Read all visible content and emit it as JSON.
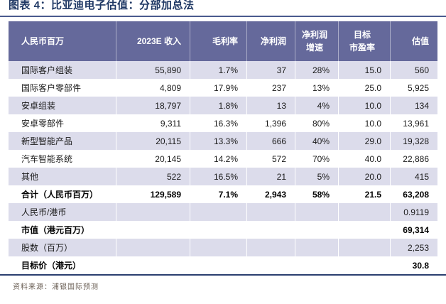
{
  "title": "图表 4：比亚迪电子估值：分部加总法",
  "source": "资料来源：浦银国际预测",
  "colors": {
    "header_bg": "#65699b",
    "stripe_bg": "#dcdceb",
    "title_navy": "#1f3864",
    "top_rule": "#4a5a8e",
    "bottom_rule": "#2a3f6f",
    "source_text": "#6a5f55"
  },
  "table": {
    "columns": [
      "人民币百万",
      "2023E 收入",
      "毛利率",
      "净利润",
      "净利润\n增速",
      "目标\n市盈率",
      "估值"
    ],
    "rows": [
      {
        "label": "国际客户组装",
        "values": [
          "55,890",
          "1.7%",
          "37",
          "28%",
          "15.0",
          "560"
        ],
        "bold": false
      },
      {
        "label": "国际客户零部件",
        "values": [
          "4,809",
          "17.9%",
          "237",
          "13%",
          "25.0",
          "5,925"
        ],
        "bold": false
      },
      {
        "label": "安卓组装",
        "values": [
          "18,797",
          "1.8%",
          "13",
          "4%",
          "10.0",
          "134"
        ],
        "bold": false
      },
      {
        "label": "安卓零部件",
        "values": [
          "9,311",
          "16.3%",
          "1,396",
          "80%",
          "10.0",
          "13,961"
        ],
        "bold": false
      },
      {
        "label": "新型智能产品",
        "values": [
          "20,115",
          "13.3%",
          "666",
          "40%",
          "29.0",
          "19,328"
        ],
        "bold": false
      },
      {
        "label": "汽车智能系统",
        "values": [
          "20,145",
          "14.2%",
          "572",
          "70%",
          "40.0",
          "22,886"
        ],
        "bold": false
      },
      {
        "label": "其他",
        "values": [
          "522",
          "16.5%",
          "21",
          "5%",
          "20.0",
          "415"
        ],
        "bold": false
      },
      {
        "label": "合计（人民币百万）",
        "values": [
          "129,589",
          "7.1%",
          "2,943",
          "58%",
          "21.5",
          "63,208"
        ],
        "bold": true
      },
      {
        "label": "人民币/港币",
        "values": [
          "",
          "",
          "",
          "",
          "",
          "0.9119"
        ],
        "bold": false
      },
      {
        "label": "市值（港元百万）",
        "values": [
          "",
          "",
          "",
          "",
          "",
          "69,314"
        ],
        "bold": true
      },
      {
        "label": "股数（百万）",
        "values": [
          "",
          "",
          "",
          "",
          "",
          "2,253"
        ],
        "bold": false
      },
      {
        "label": "目标价（港元）",
        "values": [
          "",
          "",
          "",
          "",
          "",
          "30.8"
        ],
        "bold": true
      }
    ]
  }
}
